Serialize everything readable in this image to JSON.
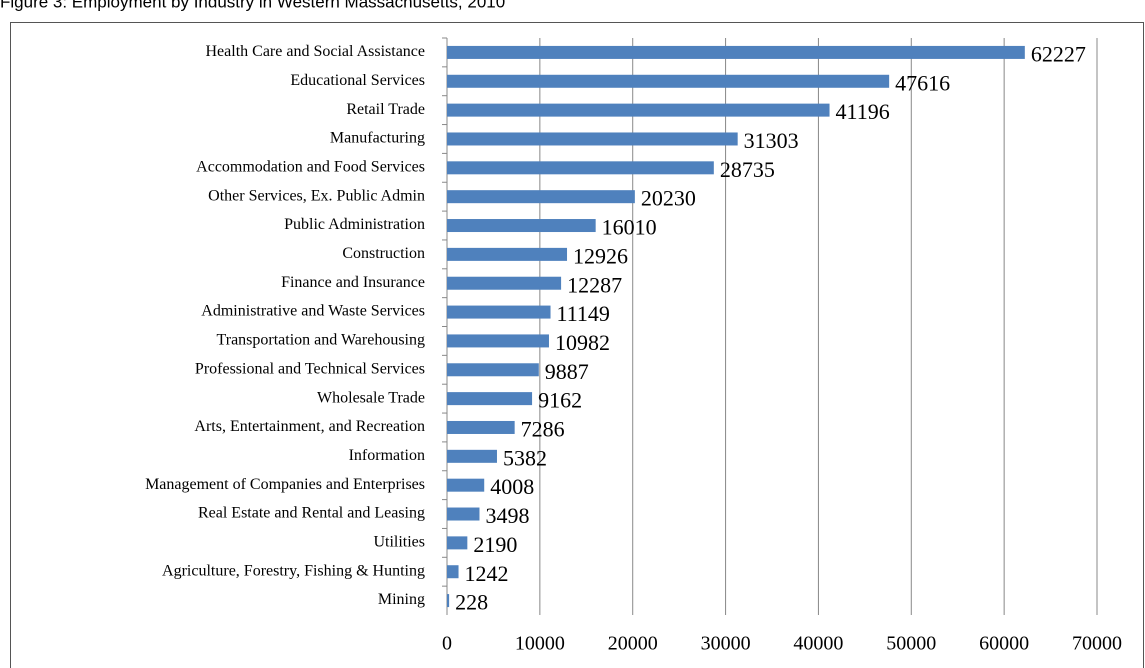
{
  "chart_data": {
    "type": "bar",
    "orientation": "horizontal",
    "title": "Figure 3: Employment by Industry in Western Massachusetts, 2010",
    "categories": [
      "Health Care and Social Assistance",
      "Educational Services",
      "Retail Trade",
      "Manufacturing",
      "Accommodation and Food Services",
      "Other Services, Ex. Public Admin",
      "Public Administration",
      "Construction",
      "Finance and Insurance",
      "Administrative and Waste Services",
      "Transportation and Warehousing",
      "Professional and Technical Services",
      "Wholesale Trade",
      "Arts, Entertainment, and Recreation",
      "Information",
      "Management of Companies and Enterprises",
      "Real Estate and Rental and Leasing",
      "Utilities",
      "Agriculture, Forestry, Fishing & Hunting",
      "Mining"
    ],
    "values": [
      62227,
      47616,
      41196,
      31303,
      28735,
      20230,
      16010,
      12926,
      12287,
      11149,
      10982,
      9887,
      9162,
      7286,
      5382,
      4008,
      3498,
      2190,
      1242,
      228
    ],
    "color": "#4f81bd",
    "xlim": [
      0,
      70000
    ],
    "xticks": [
      0,
      10000,
      20000,
      30000,
      40000,
      50000,
      60000,
      70000
    ],
    "grid": true
  }
}
